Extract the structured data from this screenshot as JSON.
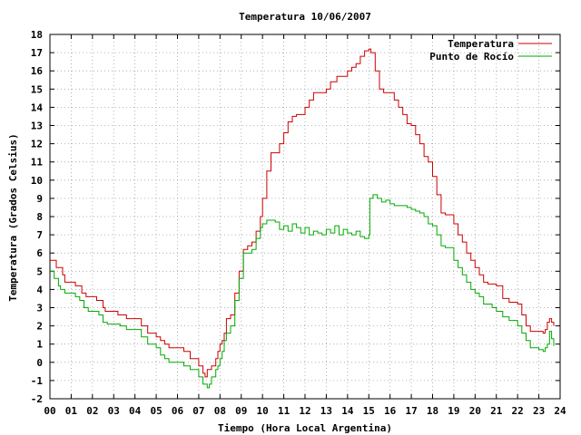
{
  "chart_data": {
    "type": "line",
    "title": "Temperatura 10/06/2007",
    "xlabel": "Tiempo (Hora Local Argentina)",
    "ylabel": "Temperatura (Grados Celsius)",
    "xlim": [
      0,
      24
    ],
    "ylim": [
      -2,
      18
    ],
    "x_ticks": [
      {
        "value": 0,
        "label": "00"
      },
      {
        "value": 1,
        "label": "01"
      },
      {
        "value": 2,
        "label": "02"
      },
      {
        "value": 3,
        "label": "03"
      },
      {
        "value": 4,
        "label": "04"
      },
      {
        "value": 5,
        "label": "05"
      },
      {
        "value": 6,
        "label": "06"
      },
      {
        "value": 7,
        "label": "07"
      },
      {
        "value": 8,
        "label": "08"
      },
      {
        "value": 9,
        "label": "09"
      },
      {
        "value": 10,
        "label": "10"
      },
      {
        "value": 11,
        "label": "11"
      },
      {
        "value": 12,
        "label": "12"
      },
      {
        "value": 13,
        "label": "13"
      },
      {
        "value": 14,
        "label": "14"
      },
      {
        "value": 15,
        "label": "15"
      },
      {
        "value": 16,
        "label": "16"
      },
      {
        "value": 17,
        "label": "17"
      },
      {
        "value": 18,
        "label": "18"
      },
      {
        "value": 19,
        "label": "19"
      },
      {
        "value": 20,
        "label": "20"
      },
      {
        "value": 21,
        "label": "21"
      },
      {
        "value": 22,
        "label": "22"
      },
      {
        "value": 23,
        "label": "23"
      },
      {
        "value": 24,
        "label": "24"
      }
    ],
    "y_ticks": [
      -2,
      -1,
      0,
      1,
      2,
      3,
      4,
      5,
      6,
      7,
      8,
      9,
      10,
      11,
      12,
      13,
      14,
      15,
      16,
      17,
      18
    ],
    "grid": true,
    "legend_position": "top-right",
    "series": [
      {
        "name": "Temperatura",
        "color": "#cc0000",
        "points": [
          [
            0.0,
            5.6
          ],
          [
            0.3,
            5.2
          ],
          [
            0.6,
            4.8
          ],
          [
            0.7,
            4.4
          ],
          [
            1.0,
            4.4
          ],
          [
            1.2,
            4.2
          ],
          [
            1.5,
            3.8
          ],
          [
            1.7,
            3.6
          ],
          [
            2.0,
            3.6
          ],
          [
            2.2,
            3.4
          ],
          [
            2.5,
            3.0
          ],
          [
            2.6,
            2.8
          ],
          [
            3.0,
            2.8
          ],
          [
            3.2,
            2.6
          ],
          [
            3.5,
            2.6
          ],
          [
            3.6,
            2.4
          ],
          [
            4.0,
            2.4
          ],
          [
            4.3,
            2.0
          ],
          [
            4.5,
            2.0
          ],
          [
            4.6,
            1.6
          ],
          [
            5.0,
            1.4
          ],
          [
            5.2,
            1.2
          ],
          [
            5.4,
            1.0
          ],
          [
            5.6,
            0.8
          ],
          [
            6.0,
            0.8
          ],
          [
            6.3,
            0.6
          ],
          [
            6.6,
            0.2
          ],
          [
            7.0,
            -0.2
          ],
          [
            7.2,
            -0.6
          ],
          [
            7.3,
            -0.8
          ],
          [
            7.4,
            -0.4
          ],
          [
            7.6,
            -0.2
          ],
          [
            7.8,
            0.2
          ],
          [
            7.9,
            0.6
          ],
          [
            8.0,
            1.0
          ],
          [
            8.1,
            1.2
          ],
          [
            8.2,
            1.6
          ],
          [
            8.3,
            2.4
          ],
          [
            8.5,
            2.6
          ],
          [
            8.7,
            3.8
          ],
          [
            8.9,
            5.0
          ],
          [
            9.1,
            6.2
          ],
          [
            9.3,
            6.4
          ],
          [
            9.5,
            6.6
          ],
          [
            9.7,
            7.2
          ],
          [
            9.9,
            8.0
          ],
          [
            10.0,
            9.0
          ],
          [
            10.2,
            10.5
          ],
          [
            10.4,
            11.5
          ],
          [
            10.6,
            11.5
          ],
          [
            10.8,
            12.0
          ],
          [
            11.0,
            12.6
          ],
          [
            11.2,
            13.2
          ],
          [
            11.4,
            13.5
          ],
          [
            11.6,
            13.6
          ],
          [
            11.8,
            13.6
          ],
          [
            12.0,
            14.0
          ],
          [
            12.2,
            14.4
          ],
          [
            12.4,
            14.8
          ],
          [
            12.7,
            14.8
          ],
          [
            13.0,
            15.0
          ],
          [
            13.2,
            15.4
          ],
          [
            13.5,
            15.7
          ],
          [
            13.8,
            15.7
          ],
          [
            14.0,
            16.0
          ],
          [
            14.2,
            16.2
          ],
          [
            14.4,
            16.4
          ],
          [
            14.6,
            16.8
          ],
          [
            14.8,
            17.1
          ],
          [
            15.0,
            17.2
          ],
          [
            15.1,
            17.0
          ],
          [
            15.3,
            16.0
          ],
          [
            15.5,
            15.0
          ],
          [
            15.7,
            14.8
          ],
          [
            16.0,
            14.8
          ],
          [
            16.2,
            14.4
          ],
          [
            16.4,
            14.0
          ],
          [
            16.6,
            13.6
          ],
          [
            16.8,
            13.1
          ],
          [
            17.0,
            13.0
          ],
          [
            17.2,
            12.5
          ],
          [
            17.4,
            12.0
          ],
          [
            17.6,
            11.3
          ],
          [
            17.8,
            11.0
          ],
          [
            18.0,
            10.2
          ],
          [
            18.2,
            9.2
          ],
          [
            18.4,
            8.2
          ],
          [
            18.6,
            8.1
          ],
          [
            18.8,
            8.1
          ],
          [
            19.0,
            7.6
          ],
          [
            19.2,
            7.0
          ],
          [
            19.4,
            6.6
          ],
          [
            19.6,
            6.0
          ],
          [
            19.8,
            5.6
          ],
          [
            20.0,
            5.2
          ],
          [
            20.2,
            4.8
          ],
          [
            20.4,
            4.4
          ],
          [
            20.6,
            4.3
          ],
          [
            20.8,
            4.3
          ],
          [
            21.0,
            4.2
          ],
          [
            21.3,
            3.5
          ],
          [
            21.6,
            3.3
          ],
          [
            22.0,
            3.2
          ],
          [
            22.2,
            2.6
          ],
          [
            22.4,
            2.0
          ],
          [
            22.6,
            1.7
          ],
          [
            23.0,
            1.7
          ],
          [
            23.2,
            1.6
          ],
          [
            23.3,
            1.8
          ],
          [
            23.4,
            2.2
          ],
          [
            23.5,
            2.4
          ],
          [
            23.6,
            2.2
          ],
          [
            23.7,
            2.0
          ]
        ]
      },
      {
        "name": "Punto de Rocío",
        "color": "#00aa00",
        "points": [
          [
            0.0,
            5.0
          ],
          [
            0.2,
            4.6
          ],
          [
            0.4,
            4.2
          ],
          [
            0.5,
            4.0
          ],
          [
            0.7,
            3.8
          ],
          [
            1.0,
            3.8
          ],
          [
            1.2,
            3.6
          ],
          [
            1.4,
            3.4
          ],
          [
            1.6,
            3.0
          ],
          [
            1.8,
            2.8
          ],
          [
            2.0,
            2.8
          ],
          [
            2.3,
            2.6
          ],
          [
            2.5,
            2.2
          ],
          [
            2.7,
            2.1
          ],
          [
            3.0,
            2.1
          ],
          [
            3.3,
            2.0
          ],
          [
            3.6,
            1.8
          ],
          [
            4.0,
            1.8
          ],
          [
            4.3,
            1.4
          ],
          [
            4.6,
            1.0
          ],
          [
            5.0,
            0.8
          ],
          [
            5.2,
            0.4
          ],
          [
            5.4,
            0.2
          ],
          [
            5.6,
            0.0
          ],
          [
            6.0,
            0.0
          ],
          [
            6.3,
            -0.2
          ],
          [
            6.6,
            -0.4
          ],
          [
            7.0,
            -0.8
          ],
          [
            7.2,
            -1.2
          ],
          [
            7.4,
            -1.4
          ],
          [
            7.5,
            -1.2
          ],
          [
            7.6,
            -0.8
          ],
          [
            7.8,
            -0.4
          ],
          [
            7.9,
            -0.2
          ],
          [
            8.0,
            0.2
          ],
          [
            8.1,
            0.6
          ],
          [
            8.2,
            1.2
          ],
          [
            8.3,
            1.6
          ],
          [
            8.5,
            2.0
          ],
          [
            8.7,
            3.4
          ],
          [
            8.9,
            4.6
          ],
          [
            9.1,
            6.0
          ],
          [
            9.3,
            6.0
          ],
          [
            9.5,
            6.2
          ],
          [
            9.7,
            6.8
          ],
          [
            9.9,
            7.4
          ],
          [
            10.0,
            7.6
          ],
          [
            10.2,
            7.8
          ],
          [
            10.4,
            7.8
          ],
          [
            10.6,
            7.7
          ],
          [
            10.8,
            7.3
          ],
          [
            11.0,
            7.5
          ],
          [
            11.2,
            7.2
          ],
          [
            11.4,
            7.6
          ],
          [
            11.6,
            7.4
          ],
          [
            11.8,
            7.1
          ],
          [
            12.0,
            7.4
          ],
          [
            12.2,
            7.0
          ],
          [
            12.4,
            7.2
          ],
          [
            12.6,
            7.1
          ],
          [
            12.8,
            7.0
          ],
          [
            13.0,
            7.3
          ],
          [
            13.2,
            7.1
          ],
          [
            13.4,
            7.5
          ],
          [
            13.6,
            7.0
          ],
          [
            13.8,
            7.3
          ],
          [
            14.0,
            7.1
          ],
          [
            14.2,
            7.0
          ],
          [
            14.4,
            7.2
          ],
          [
            14.6,
            6.9
          ],
          [
            14.8,
            6.8
          ],
          [
            15.0,
            7.0
          ],
          [
            15.05,
            9.0
          ],
          [
            15.2,
            9.2
          ],
          [
            15.4,
            9.0
          ],
          [
            15.6,
            8.8
          ],
          [
            15.8,
            8.9
          ],
          [
            16.0,
            8.7
          ],
          [
            16.2,
            8.6
          ],
          [
            16.4,
            8.6
          ],
          [
            16.6,
            8.6
          ],
          [
            16.8,
            8.5
          ],
          [
            17.0,
            8.4
          ],
          [
            17.2,
            8.3
          ],
          [
            17.4,
            8.2
          ],
          [
            17.6,
            8.0
          ],
          [
            17.8,
            7.6
          ],
          [
            18.0,
            7.5
          ],
          [
            18.2,
            7.0
          ],
          [
            18.4,
            6.4
          ],
          [
            18.6,
            6.3
          ],
          [
            18.8,
            6.3
          ],
          [
            19.0,
            5.6
          ],
          [
            19.2,
            5.2
          ],
          [
            19.4,
            4.8
          ],
          [
            19.6,
            4.4
          ],
          [
            19.8,
            4.0
          ],
          [
            20.0,
            3.8
          ],
          [
            20.2,
            3.6
          ],
          [
            20.4,
            3.2
          ],
          [
            20.6,
            3.2
          ],
          [
            20.8,
            3.0
          ],
          [
            21.0,
            2.8
          ],
          [
            21.3,
            2.5
          ],
          [
            21.6,
            2.3
          ],
          [
            22.0,
            2.0
          ],
          [
            22.2,
            1.6
          ],
          [
            22.4,
            1.2
          ],
          [
            22.6,
            0.8
          ],
          [
            23.0,
            0.7
          ],
          [
            23.2,
            0.6
          ],
          [
            23.3,
            0.8
          ],
          [
            23.4,
            1.0
          ],
          [
            23.5,
            1.7
          ],
          [
            23.6,
            1.3
          ],
          [
            23.7,
            0.9
          ]
        ]
      }
    ]
  }
}
